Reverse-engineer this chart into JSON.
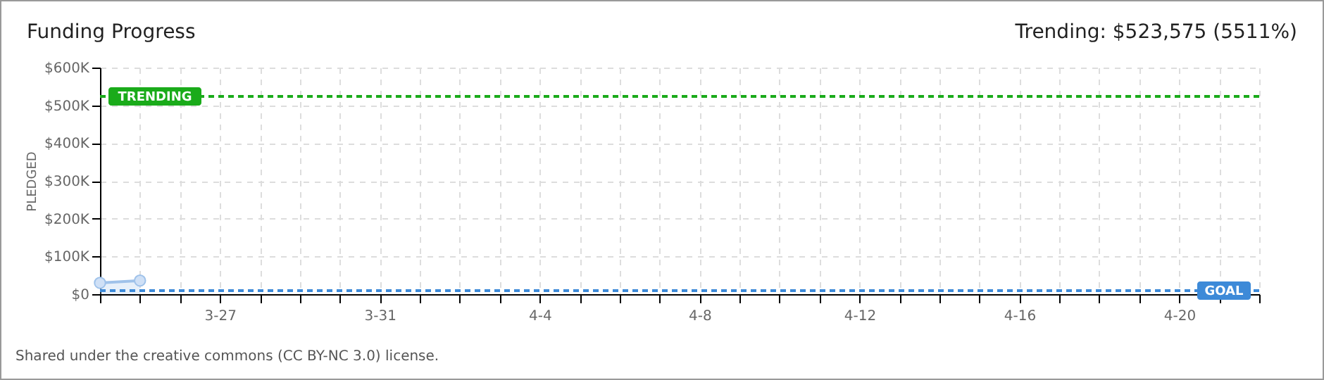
{
  "chart_data": {
    "type": "area",
    "title": "Funding Progress",
    "subtitle": "Trending: $523,575 (5511%)",
    "ylabel": "PLEDGED",
    "annotations": [
      "Shared under the creative commons (CC BY-NC 3.0) license."
    ],
    "x": [
      "--03-24",
      "--03-25"
    ],
    "series": [
      {
        "color": "#9fc2ea",
        "values": [
          30000,
          36000
        ]
      }
    ],
    "xlim": [
      "--03-24",
      "--04-22"
    ],
    "xticks": [
      {
        "value": "--03-24",
        "label": null
      },
      {
        "value": "--03-25",
        "label": null
      },
      {
        "value": "--03-26",
        "label": null
      },
      {
        "value": "--03-27",
        "label": "3-27"
      },
      {
        "value": "--03-28",
        "label": null
      },
      {
        "value": "--03-29",
        "label": null
      },
      {
        "value": "--03-30",
        "label": null
      },
      {
        "value": "--03-31",
        "label": "3-31"
      },
      {
        "value": "--04-01",
        "label": null
      },
      {
        "value": "--04-02",
        "label": null
      },
      {
        "value": "--04-03",
        "label": null
      },
      {
        "value": "--04-04",
        "label": "4-4"
      },
      {
        "value": "--04-05",
        "label": null
      },
      {
        "value": "--04-06",
        "label": null
      },
      {
        "value": "--04-07",
        "label": null
      },
      {
        "value": "--04-08",
        "label": "4-8"
      },
      {
        "value": "--04-09",
        "label": null
      },
      {
        "value": "--04-10",
        "label": null
      },
      {
        "value": "--04-11",
        "label": null
      },
      {
        "value": "--04-12",
        "label": "4-12"
      },
      {
        "value": "--04-13",
        "label": null
      },
      {
        "value": "--04-14",
        "label": null
      },
      {
        "value": "--04-15",
        "label": null
      },
      {
        "value": "--04-16",
        "label": "4-16"
      },
      {
        "value": "--04-17",
        "label": null
      },
      {
        "value": "--04-18",
        "label": null
      },
      {
        "value": "--04-19",
        "label": null
      },
      {
        "value": "--04-20",
        "label": "4-20"
      },
      {
        "value": "--04-21",
        "label": null
      },
      {
        "value": "--04-22",
        "label": null
      }
    ],
    "ylim": [
      0,
      600000
    ],
    "yticks": [
      {
        "value": 0,
        "label": "$0"
      },
      {
        "value": 100000,
        "label": "$100K"
      },
      {
        "value": 200000,
        "label": "$200K"
      },
      {
        "value": 300000,
        "label": "$300K"
      },
      {
        "value": 400000,
        "label": "$400K"
      },
      {
        "value": 500000,
        "label": "$500K"
      },
      {
        "value": 600000,
        "label": "$600K"
      }
    ],
    "ref_lines": [
      {
        "axis": "y",
        "value": 523575,
        "label": "TRENDING",
        "color": "#1aab1a",
        "line_style": "dashed"
      },
      {
        "axis": "y",
        "value": 9500,
        "label": "GOAL",
        "color": "#3d8ad8",
        "line_style": "dashed"
      }
    ],
    "grid": true,
    "marker": "circle"
  }
}
